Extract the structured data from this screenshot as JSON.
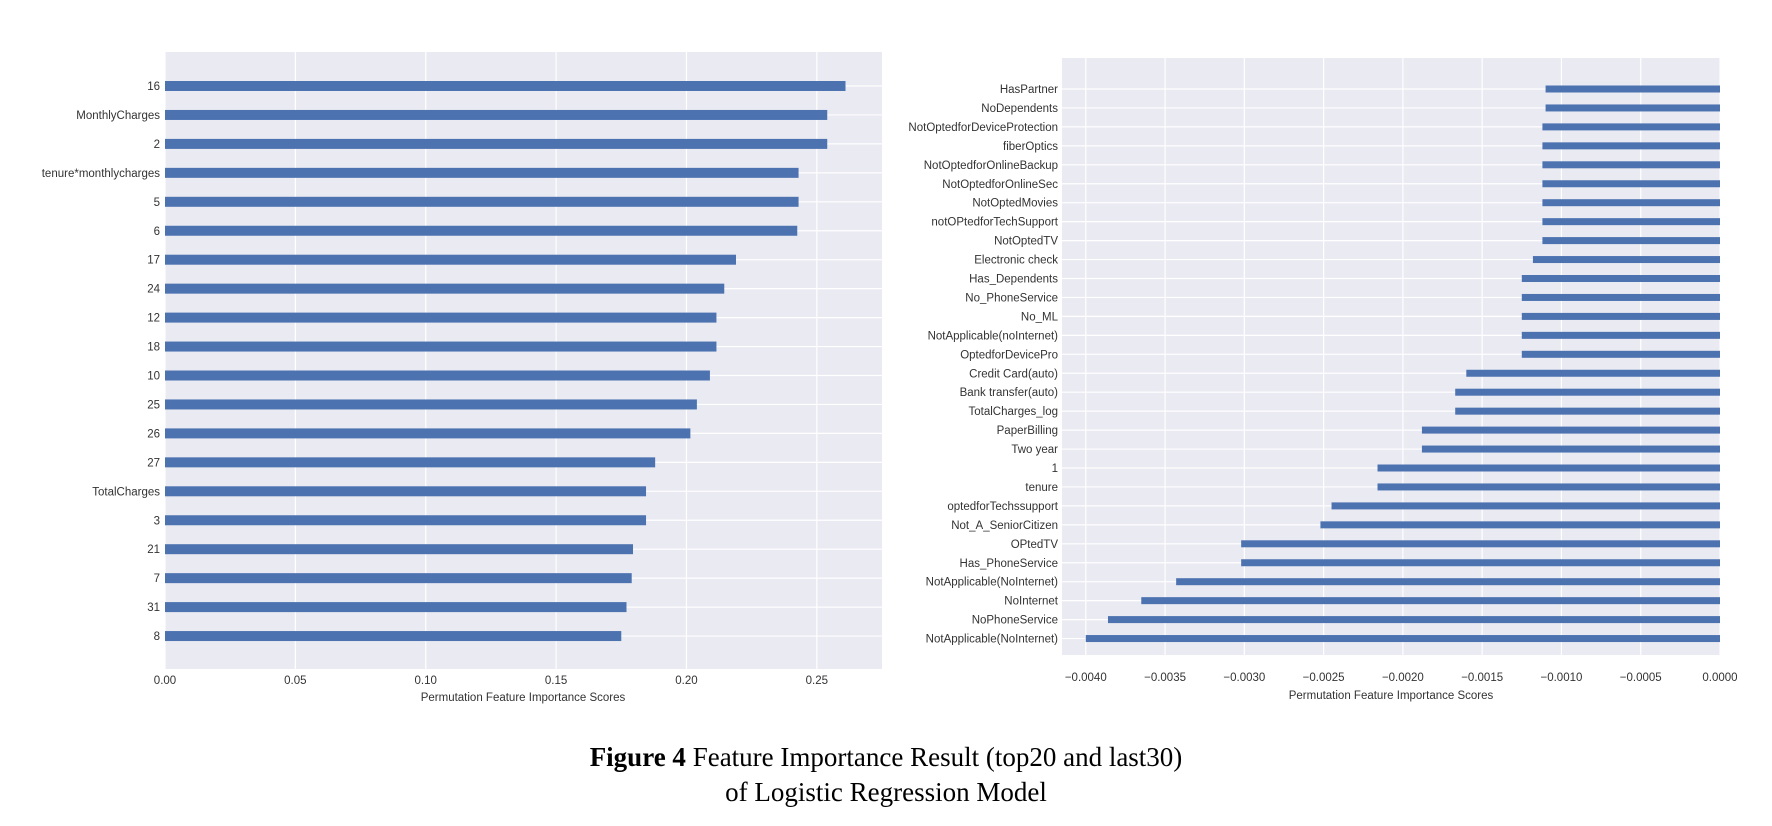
{
  "chart_data": [
    {
      "type": "bar",
      "orientation": "horizontal",
      "categories": [
        "16",
        "MonthlyCharges",
        "2",
        "tenure*monthlycharges",
        "5",
        "6",
        "17",
        "24",
        "12",
        "18",
        "10",
        "25",
        "26",
        "27",
        "TotalCharges",
        "3",
        "21",
        "7",
        "31",
        "8"
      ],
      "values": [
        0.261,
        0.254,
        0.254,
        0.243,
        0.243,
        0.2425,
        0.219,
        0.2145,
        0.2115,
        0.2115,
        0.209,
        0.204,
        0.2015,
        0.188,
        0.1845,
        0.1845,
        0.1795,
        0.179,
        0.177,
        0.175
      ],
      "xlim": [
        0,
        0.275
      ],
      "xticks": [
        "0.00",
        "0.05",
        "0.10",
        "0.15",
        "0.20",
        "0.25"
      ],
      "xtick_values": [
        0,
        0.05,
        0.1,
        0.15,
        0.2,
        0.25
      ],
      "xlabel": "Permutation Feature Importance Scores",
      "ylabel": "",
      "title": "",
      "grid": true,
      "bar_color": "#4c72b0",
      "background": "#eaeaf2"
    },
    {
      "type": "bar",
      "orientation": "horizontal",
      "categories": [
        "HasPartner",
        "NoDependents",
        "NotOptedforDeviceProtection",
        "fiberOptics",
        "NotOptedforOnlineBackup",
        "NotOptedforOnlineSec",
        "NotOptedMovies",
        "notOPtedforTechSupport",
        "NotOptedTV",
        "Electronic check",
        "Has_Dependents",
        "No_PhoneService",
        "No_ML",
        "NotApplicable(noInternet)",
        "OptedforDevicePro",
        "Credit Card(auto)",
        "Bank transfer(auto)",
        "TotalCharges_log",
        "PaperBilling",
        "Two year",
        "1",
        "tenure",
        "optedforTechssupport",
        "Not_A_SeniorCitizen",
        "OPtedTV",
        "Has_PhoneService",
        "NotApplicable(NoInternet)",
        "NoInternet",
        "NoPhoneService",
        "NotApplicable(NoInternet)"
      ],
      "values": [
        -0.0011,
        -0.0011,
        -0.00112,
        -0.00112,
        -0.00112,
        -0.00112,
        -0.00112,
        -0.00112,
        -0.00112,
        -0.00118,
        -0.00125,
        -0.00125,
        -0.00125,
        -0.00125,
        -0.00125,
        -0.0016,
        -0.00167,
        -0.00167,
        -0.00188,
        -0.00188,
        -0.00216,
        -0.00216,
        -0.00245,
        -0.00252,
        -0.00302,
        -0.00302,
        -0.00343,
        -0.00365,
        -0.00386,
        -0.004
      ],
      "xlim": [
        -0.00415,
        0
      ],
      "xticks": [
        "−0.0040",
        "−0.0035",
        "−0.0030",
        "−0.0025",
        "−0.0020",
        "−0.0015",
        "−0.0010",
        "−0.0005",
        "0.0000"
      ],
      "xtick_values": [
        -0.004,
        -0.0035,
        -0.003,
        -0.0025,
        -0.002,
        -0.0015,
        -0.001,
        -0.0005,
        0
      ],
      "xlabel": "Permutation Feature Importance Scores",
      "ylabel": "",
      "title": "",
      "grid": true,
      "bar_color": "#4c72b0",
      "background": "#eaeaf2"
    }
  ],
  "caption": {
    "label": "Figure 4",
    "line1": " Feature Importance Result (top20 and last30)",
    "line2": "of Logistic Regression Model"
  }
}
